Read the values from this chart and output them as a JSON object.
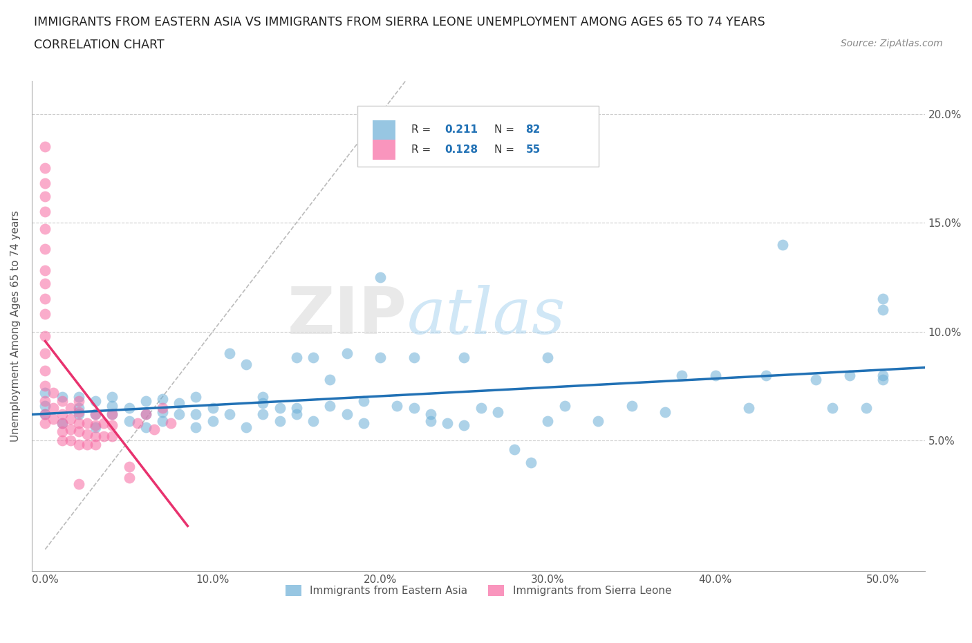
{
  "title_line1": "IMMIGRANTS FROM EASTERN ASIA VS IMMIGRANTS FROM SIERRA LEONE UNEMPLOYMENT AMONG AGES 65 TO 74 YEARS",
  "title_line2": "CORRELATION CHART",
  "source": "Source: ZipAtlas.com",
  "ylabel": "Unemployment Among Ages 65 to 74 years",
  "x_ticks": [
    0.0,
    0.1,
    0.2,
    0.3,
    0.4,
    0.5
  ],
  "x_tick_labels": [
    "0.0%",
    "10.0%",
    "20.0%",
    "30.0%",
    "40.0%",
    "50.0%"
  ],
  "y_ticks": [
    0.05,
    0.1,
    0.15,
    0.2
  ],
  "y_tick_labels_right": [
    "5.0%",
    "10.0%",
    "15.0%",
    "20.0%"
  ],
  "xlim": [
    -0.008,
    0.525
  ],
  "ylim": [
    -0.01,
    0.215
  ],
  "color_blue": "#6baed6",
  "color_pink": "#f768a1",
  "color_blue_line": "#2171b5",
  "color_pink_line": "#e8326e",
  "R_blue": 0.211,
  "N_blue": 82,
  "R_pink": 0.128,
  "N_pink": 55,
  "legend_label_blue": "Immigrants from Eastern Asia",
  "legend_label_pink": "Immigrants from Sierra Leone",
  "watermark_zip": "ZIP",
  "watermark_atlas": "atlas",
  "blue_x": [
    0.0,
    0.0,
    0.0,
    0.01,
    0.01,
    0.02,
    0.02,
    0.02,
    0.03,
    0.03,
    0.03,
    0.04,
    0.04,
    0.04,
    0.05,
    0.05,
    0.06,
    0.06,
    0.06,
    0.07,
    0.07,
    0.07,
    0.08,
    0.08,
    0.09,
    0.09,
    0.09,
    0.1,
    0.1,
    0.11,
    0.11,
    0.12,
    0.12,
    0.13,
    0.13,
    0.13,
    0.14,
    0.14,
    0.15,
    0.15,
    0.15,
    0.16,
    0.16,
    0.17,
    0.17,
    0.18,
    0.18,
    0.19,
    0.19,
    0.2,
    0.2,
    0.21,
    0.22,
    0.22,
    0.23,
    0.23,
    0.24,
    0.25,
    0.25,
    0.26,
    0.27,
    0.28,
    0.29,
    0.3,
    0.3,
    0.31,
    0.33,
    0.35,
    0.37,
    0.38,
    0.4,
    0.42,
    0.43,
    0.44,
    0.46,
    0.47,
    0.48,
    0.49,
    0.5,
    0.5,
    0.5,
    0.5
  ],
  "blue_y": [
    0.066,
    0.072,
    0.062,
    0.058,
    0.07,
    0.062,
    0.065,
    0.07,
    0.056,
    0.062,
    0.068,
    0.062,
    0.066,
    0.07,
    0.059,
    0.065,
    0.056,
    0.062,
    0.068,
    0.059,
    0.063,
    0.069,
    0.062,
    0.067,
    0.056,
    0.062,
    0.07,
    0.059,
    0.065,
    0.062,
    0.09,
    0.056,
    0.085,
    0.062,
    0.067,
    0.07,
    0.059,
    0.065,
    0.062,
    0.088,
    0.065,
    0.059,
    0.088,
    0.066,
    0.078,
    0.062,
    0.09,
    0.068,
    0.058,
    0.088,
    0.125,
    0.066,
    0.065,
    0.088,
    0.062,
    0.059,
    0.058,
    0.057,
    0.088,
    0.065,
    0.063,
    0.046,
    0.04,
    0.059,
    0.088,
    0.066,
    0.059,
    0.066,
    0.063,
    0.08,
    0.08,
    0.065,
    0.08,
    0.14,
    0.078,
    0.065,
    0.08,
    0.065,
    0.078,
    0.08,
    0.115,
    0.11
  ],
  "pink_x": [
    0.0,
    0.0,
    0.0,
    0.0,
    0.0,
    0.0,
    0.0,
    0.0,
    0.0,
    0.0,
    0.0,
    0.0,
    0.0,
    0.0,
    0.0,
    0.0,
    0.0,
    0.0,
    0.005,
    0.005,
    0.005,
    0.01,
    0.01,
    0.01,
    0.01,
    0.01,
    0.015,
    0.015,
    0.015,
    0.015,
    0.02,
    0.02,
    0.02,
    0.02,
    0.02,
    0.025,
    0.025,
    0.025,
    0.03,
    0.03,
    0.03,
    0.03,
    0.035,
    0.035,
    0.04,
    0.04,
    0.04,
    0.05,
    0.05,
    0.055,
    0.06,
    0.065,
    0.07,
    0.075,
    0.02
  ],
  "pink_y": [
    0.185,
    0.175,
    0.168,
    0.162,
    0.155,
    0.147,
    0.138,
    0.128,
    0.122,
    0.115,
    0.108,
    0.098,
    0.09,
    0.082,
    0.075,
    0.068,
    0.062,
    0.058,
    0.072,
    0.065,
    0.06,
    0.068,
    0.062,
    0.058,
    0.054,
    0.05,
    0.065,
    0.06,
    0.055,
    0.05,
    0.068,
    0.063,
    0.058,
    0.054,
    0.048,
    0.058,
    0.053,
    0.048,
    0.062,
    0.057,
    0.052,
    0.048,
    0.058,
    0.052,
    0.062,
    0.057,
    0.052,
    0.038,
    0.033,
    0.058,
    0.062,
    0.055,
    0.065,
    0.058,
    0.03
  ],
  "diag_line_x": [
    0.0,
    0.215
  ],
  "diag_line_y": [
    0.0,
    0.215
  ]
}
